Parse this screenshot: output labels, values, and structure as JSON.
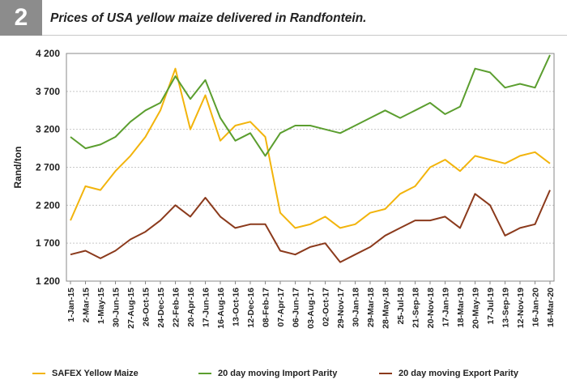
{
  "figure": {
    "number": "2",
    "title": "Prices of USA yellow maize delivered in Randfontein."
  },
  "colors": {
    "safex": "#f2b40c",
    "import": "#5b9e2f",
    "export": "#8b3a1c",
    "grid": "#c8c8c8",
    "axis": "#888888",
    "figure_box": "#8c8c8c"
  },
  "chart_data": {
    "type": "line",
    "title": "",
    "xlabel": "",
    "ylabel": "Rand/ton",
    "ylim": [
      1200,
      4200
    ],
    "yticks": [
      1200,
      1700,
      2200,
      2700,
      3200,
      3700,
      4200
    ],
    "ytick_labels": [
      "1 200",
      "1 700",
      "2 200",
      "2 700",
      "3 200",
      "3 700",
      "4 200"
    ],
    "grid": true,
    "legend_position": "bottom",
    "x_tick_labels": [
      "1-Jan-15",
      "2-Mar-15",
      "1-May-15",
      "30-Jun-15",
      "27-Aug-15",
      "26-Oct-15",
      "24-Dec-15",
      "22-Feb-16",
      "20-Apr-16",
      "17-Jun-16",
      "16-Aug-16",
      "13-Oct-16",
      "12-Dec-16",
      "08-Feb-17",
      "07-Apr-17",
      "06-Jun-17",
      "03-Aug-17",
      "02-Oct-17",
      "29-Nov-17",
      "30-Jan-18",
      "29-Mar-18",
      "28-May-18",
      "25-Jul-18",
      "21-Sep-18",
      "20-Nov-18",
      "17-Jan-19",
      "18-Mar-19",
      "20-May-19",
      "17-Jul-19",
      "13-Sep-19",
      "12-Nov-19",
      "16-Jan-20",
      "16-Mar-20"
    ],
    "series": [
      {
        "name": "SAFEX Yellow Maize",
        "values": [
          2000,
          2450,
          2400,
          2650,
          2850,
          3100,
          3450,
          4000,
          3200,
          3650,
          3050,
          3250,
          3300,
          3100,
          2100,
          1900,
          1950,
          2050,
          1900,
          1950,
          2100,
          2150,
          2350,
          2450,
          2700,
          2800,
          2650,
          2850,
          2800,
          2750,
          2850,
          2900,
          2750
        ]
      },
      {
        "name": "20 day moving Import Parity",
        "values": [
          3100,
          2950,
          3000,
          3100,
          3300,
          3450,
          3550,
          3900,
          3600,
          3850,
          3350,
          3050,
          3150,
          2850,
          3150,
          3250,
          3250,
          3200,
          3150,
          3250,
          3350,
          3450,
          3350,
          3450,
          3550,
          3400,
          3500,
          4000,
          3950,
          3750,
          3800,
          3750,
          4180
        ]
      },
      {
        "name": "20 day moving Export Parity",
        "values": [
          1550,
          1600,
          1500,
          1600,
          1750,
          1850,
          2000,
          2200,
          2050,
          2300,
          2050,
          1900,
          1950,
          1950,
          1600,
          1550,
          1650,
          1700,
          1450,
          1550,
          1650,
          1800,
          1900,
          2000,
          2000,
          2050,
          1900,
          2350,
          2200,
          1800,
          1900,
          1950,
          2400
        ]
      }
    ]
  }
}
